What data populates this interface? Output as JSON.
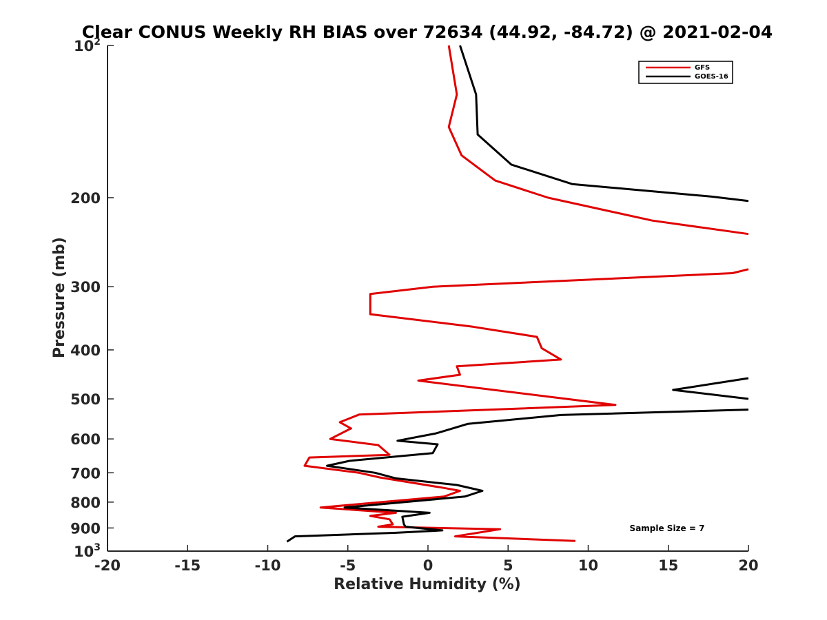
{
  "chart_data": {
    "type": "line",
    "title": "Clear CONUS Weekly RH BIAS over 72634 (44.92, -84.72) @ 2021-02-04",
    "xlabel": "Relative Humidity (%)",
    "ylabel": "Pressure (mb)",
    "xlim": [
      -20,
      20
    ],
    "ylim": [
      100,
      1000
    ],
    "yscale": "log",
    "yreversed": true,
    "grid": false,
    "legend_position": "top-right",
    "xticks": [
      {
        "value": -20,
        "label": "-20"
      },
      {
        "value": -15,
        "label": "-15"
      },
      {
        "value": -10,
        "label": "-10"
      },
      {
        "value": -5,
        "label": "-5"
      },
      {
        "value": 0,
        "label": "0"
      },
      {
        "value": 5,
        "label": "5"
      },
      {
        "value": 10,
        "label": "10"
      },
      {
        "value": 15,
        "label": "15"
      },
      {
        "value": 20,
        "label": "20"
      }
    ],
    "yticks": [
      {
        "value": 100,
        "base": "10",
        "exp": "2"
      },
      {
        "value": 200,
        "label": "200"
      },
      {
        "value": 300,
        "label": "300"
      },
      {
        "value": 400,
        "label": "400"
      },
      {
        "value": 500,
        "label": "500"
      },
      {
        "value": 600,
        "label": "600"
      },
      {
        "value": 700,
        "label": "700"
      },
      {
        "value": 800,
        "label": "800"
      },
      {
        "value": 900,
        "label": "900"
      },
      {
        "value": 1000,
        "base": "10",
        "exp": "3"
      }
    ],
    "annotation": "Sample Size = 7",
    "series": [
      {
        "name": "GFS",
        "color": "#e00000",
        "segments": [
          [
            [
              1.3,
              100
            ],
            [
              1.8,
              125
            ],
            [
              1.3,
              145
            ],
            [
              2.1,
              165
            ],
            [
              4.2,
              185
            ],
            [
              7.5,
              200
            ],
            [
              14.0,
              222
            ],
            [
              20.0,
              236
            ]
          ],
          [
            [
              20.0,
              277
            ],
            [
              19.0,
              282
            ],
            [
              0.3,
              300
            ],
            [
              -3.6,
              310
            ],
            [
              -3.6,
              340
            ],
            [
              2.8,
              360
            ],
            [
              6.8,
              377
            ],
            [
              7.1,
              397
            ],
            [
              8.3,
              418
            ],
            [
              1.8,
              431
            ],
            [
              2.0,
              448
            ],
            [
              -0.6,
              460
            ],
            [
              11.7,
              514
            ],
            [
              -4.3,
              537
            ],
            [
              -5.5,
              556
            ],
            [
              -4.8,
              572
            ],
            [
              -6.1,
              600
            ],
            [
              -3.1,
              617
            ],
            [
              -2.4,
              645
            ],
            [
              -7.4,
              653
            ],
            [
              -7.7,
              678
            ],
            [
              -4.3,
              700
            ],
            [
              -3.0,
              715
            ],
            [
              1.0,
              750
            ],
            [
              2.0,
              760
            ],
            [
              1.0,
              780
            ],
            [
              -6.7,
              820
            ],
            [
              -2.0,
              840
            ],
            [
              -3.6,
              852
            ],
            [
              -2.4,
              865
            ],
            [
              -2.2,
              885
            ],
            [
              -3.1,
              895
            ],
            [
              4.5,
              905
            ],
            [
              1.7,
              935
            ],
            [
              9.2,
              955
            ]
          ]
        ]
      },
      {
        "name": "GOES-16",
        "color": "#000000",
        "segments": [
          [
            [
              2.0,
              100
            ],
            [
              3.0,
              125
            ],
            [
              3.1,
              150
            ],
            [
              5.2,
              172
            ],
            [
              9.0,
              188
            ],
            [
              17.7,
              199
            ],
            [
              20.0,
              203
            ]
          ],
          [
            [
              20.0,
              455
            ],
            [
              15.3,
              480
            ],
            [
              20.0,
              500
            ]
          ],
          [
            [
              20.0,
              525
            ],
            [
              8.3,
              538
            ],
            [
              2.5,
              560
            ],
            [
              0.5,
              585
            ],
            [
              -1.9,
              605
            ],
            [
              0.6,
              615
            ],
            [
              0.3,
              640
            ],
            [
              -4.9,
              663
            ],
            [
              -6.3,
              678
            ],
            [
              -3.3,
              700
            ],
            [
              -2.0,
              718
            ],
            [
              1.8,
              740
            ],
            [
              3.4,
              760
            ],
            [
              2.3,
              780
            ],
            [
              -5.2,
              820
            ],
            [
              0.1,
              840
            ],
            [
              -1.6,
              855
            ],
            [
              -1.5,
              885
            ],
            [
              -1.4,
              895
            ],
            [
              0.9,
              910
            ],
            [
              -2.0,
              920
            ],
            [
              -8.3,
              935
            ],
            [
              -8.8,
              958
            ]
          ]
        ]
      }
    ]
  }
}
